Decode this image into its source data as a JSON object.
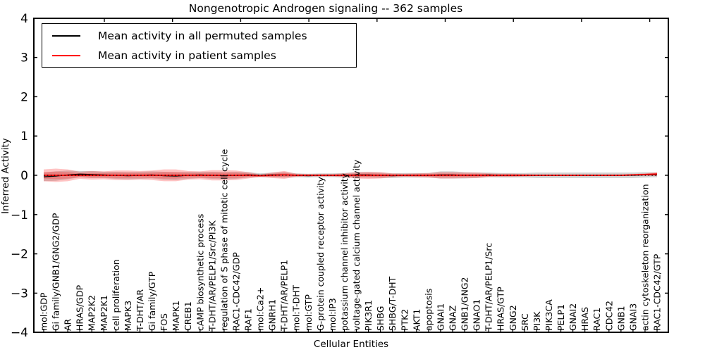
{
  "title": "Nongenotropic Androgen signaling -- 362 samples",
  "legend": {
    "permuted": "Mean activity in all permuted samples",
    "patient": "Mean activity in patient samples"
  },
  "axes": {
    "xlabel": "Cellular Entities",
    "ylabel": "Inferred Activity",
    "ytick_labels": [
      "−4",
      "−3",
      "−2",
      "−1",
      "0",
      "1",
      "2",
      "3",
      "4"
    ]
  },
  "colors": {
    "patient_line": "#ff0000",
    "permuted_line": "#000000",
    "patient_band": "#ff2020",
    "permuted_band": "#808080",
    "frame": "#000000",
    "background": "#ffffff"
  },
  "chart_data": {
    "type": "line",
    "title": "Nongenotropic Androgen signaling -- 362 samples",
    "xlabel": "Cellular Entities",
    "ylabel": "Inferred Activity",
    "ylim": [
      -4,
      4
    ],
    "yticks": [
      -4,
      -3,
      -2,
      -1,
      0,
      1,
      2,
      3,
      4
    ],
    "grid": false,
    "legend_position": "upper left",
    "zero_line": {
      "style": "dotted",
      "color": "#000000",
      "y": 0
    },
    "categories": [
      "mol:GDP",
      "Gi family/GNB1/GNG2/GDP",
      "AR",
      "HRAS/GDP",
      "MAP2K2",
      "MAP2K1",
      "cell proliferation",
      "MAPK3",
      "T-DHT/AR",
      "Gi family/GTP",
      "FOS",
      "MAPK1",
      "CREB1",
      "cAMP biosynthetic process",
      "T-DHT/AR/PELP1/Src/PI3K",
      "regulation of S phase of mitotic cell cycle",
      "RAC1-CDC42/GDP",
      "RAF1",
      "mol:Ca2+",
      "GNRH1",
      "T-DHT/AR/PELP1",
      "mol:T-DHT",
      "mol:GTP",
      "G-protein coupled receptor activity",
      "mol:IP3",
      "potassium channel inhibitor activity",
      "voltage-gated calcium channel activity",
      "PIK3R1",
      "SHBG",
      "SHBG/T-DHT",
      "PTK2",
      "AKT1",
      "apoptosis",
      "GNAI1",
      "GNAZ",
      "GNB1/GNG2",
      "GNAO1",
      "T-DHT/AR/PELP1/Src",
      "HRAS/GTP",
      "GNG2",
      "SRC",
      "PI3K",
      "PIK3CA",
      "PELP1",
      "GNAI2",
      "HRAS",
      "RAC1",
      "CDC42",
      "GNB1",
      "GNAI3",
      "actin cytoskeleton reorganization",
      "RAC1-CDC42/GTP"
    ],
    "series": [
      {
        "name": "Mean activity in all permuted samples",
        "color": "#000000",
        "values": [
          -0.04,
          -0.02,
          0.01,
          0.03,
          0.02,
          0.01,
          0,
          -0.01,
          0,
          0.01,
          -0.01,
          -0.02,
          0,
          0.01,
          0,
          -0.01,
          0,
          0.01,
          0,
          0.01,
          0.01,
          0,
          -0.01,
          0,
          0,
          0,
          0.01,
          0.01,
          0,
          -0.01,
          0,
          0,
          0,
          0.01,
          0.01,
          0,
          0,
          0.01,
          0,
          0,
          0,
          0,
          0,
          0,
          0,
          0,
          0,
          0,
          0,
          0,
          0.01,
          0.01
        ]
      },
      {
        "name": "Mean activity in patient samples",
        "color": "#ff0000",
        "values": [
          0,
          0,
          0,
          0,
          0,
          0,
          0,
          0,
          0,
          0,
          0,
          0,
          0,
          0,
          0,
          0,
          0,
          0,
          -0.01,
          0,
          0.01,
          0,
          0,
          0,
          0,
          0,
          0,
          0,
          0,
          0,
          0,
          0,
          0,
          0,
          0,
          0,
          0,
          0,
          0,
          0,
          0,
          0,
          0,
          0,
          0,
          0,
          0,
          0,
          0,
          0.01,
          0.02,
          0.03
        ]
      }
    ],
    "bands": [
      {
        "name": "std envelope of permuted samples",
        "color": "#808080",
        "opacity": 0.35,
        "center_series": 0,
        "halfwidths": [
          0.11,
          0.12,
          0.11,
          0.08,
          0.09,
          0.08,
          0.09,
          0.09,
          0.09,
          0.09,
          0.1,
          0.1,
          0.09,
          0.08,
          0.09,
          0.09,
          0.09,
          0.07,
          0.05,
          0.06,
          0.07,
          0.05,
          0.05,
          0.05,
          0.05,
          0.06,
          0.07,
          0.07,
          0.07,
          0.06,
          0.06,
          0.06,
          0.06,
          0.09,
          0.09,
          0.08,
          0.07,
          0.06,
          0.06,
          0.06,
          0.06,
          0.07,
          0.07,
          0.07,
          0.07,
          0.07,
          0.07,
          0.07,
          0.07,
          0.07,
          0.07,
          0.06
        ]
      },
      {
        "name": "std envelope of patient samples",
        "color": "#ff2020",
        "opacity": 0.27,
        "center_series": 1,
        "halfwidths": [
          0.15,
          0.17,
          0.15,
          0.09,
          0.11,
          0.1,
          0.12,
          0.12,
          0.11,
          0.12,
          0.15,
          0.15,
          0.11,
          0.1,
          0.13,
          0.13,
          0.12,
          0.08,
          0.03,
          0.07,
          0.1,
          0.04,
          0.03,
          0.03,
          0.03,
          0.05,
          0.08,
          0.09,
          0.08,
          0.05,
          0.04,
          0.05,
          0.06,
          0.08,
          0.08,
          0.07,
          0.07,
          0.05,
          0.04,
          0.04,
          0.03,
          0.02,
          0.02,
          0.02,
          0.02,
          0.02,
          0.02,
          0.02,
          0.02,
          0.02,
          0.03,
          0.05
        ]
      }
    ]
  }
}
